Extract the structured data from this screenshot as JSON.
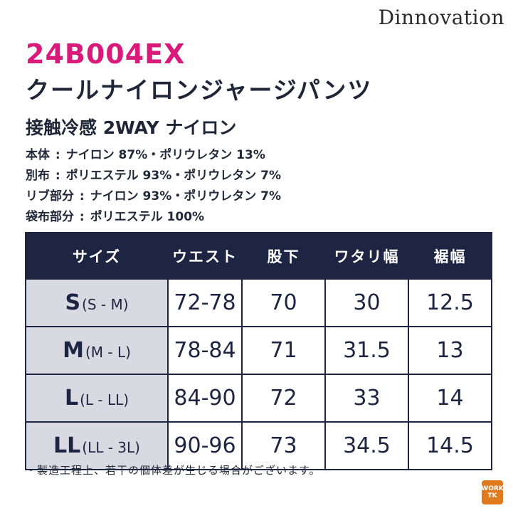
{
  "brand": "Dinnovation",
  "product": {
    "code": "24B004EX",
    "name": "クールナイロンジャージパンツ",
    "feature": "接触冷感 2WAY ナイロン"
  },
  "materials": [
    {
      "label": "本体",
      "value": "ナイロン 87%・ポリウレタン 13%"
    },
    {
      "label": "別布",
      "value": "ポリエステル 93%・ポリウレタン 7%"
    },
    {
      "label": "リブ部分",
      "value": "ナイロン 93%・ポリウレタン 7%"
    },
    {
      "label": "袋布部分",
      "value": "ポリエステル 100%"
    }
  ],
  "table": {
    "headers": [
      "サイズ",
      "ウエスト",
      "股下",
      "ワタリ幅",
      "裾幅"
    ],
    "rows": [
      {
        "size": "S",
        "range": "(S - M)",
        "waist": "72-78",
        "inseam": "70",
        "thigh": "30",
        "hem": "12.5"
      },
      {
        "size": "M",
        "range": "(M - L)",
        "waist": "78-84",
        "inseam": "71",
        "thigh": "31.5",
        "hem": "13"
      },
      {
        "size": "L",
        "range": "(L - LL)",
        "waist": "84-90",
        "inseam": "72",
        "thigh": "33",
        "hem": "14"
      },
      {
        "size": "LL",
        "range": "(LL - 3L)",
        "waist": "90-96",
        "inseam": "73",
        "thigh": "34.5",
        "hem": "14.5"
      }
    ]
  },
  "note": "・製造工程上、若干の個体差が生じる場合がございます。",
  "logo": {
    "line1": "WORK",
    "line2": "TK",
    "color": "#e07a1f"
  }
}
